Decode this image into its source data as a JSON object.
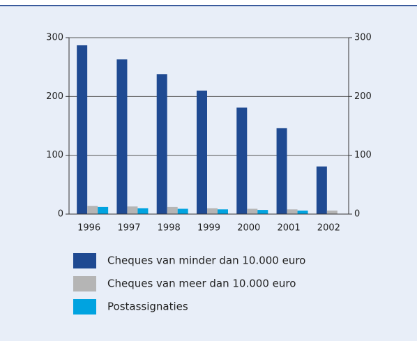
{
  "chart_data": {
    "type": "bar",
    "categories": [
      "1996",
      "1997",
      "1998",
      "1999",
      "2000",
      "2001",
      "2002"
    ],
    "series": [
      {
        "name": "Cheques van minder dan 10.000 euro",
        "color": "#1f4a92",
        "values": [
          287,
          263,
          238,
          210,
          181,
          146,
          81
        ]
      },
      {
        "name": "Cheques van meer dan 10.000 euro",
        "color": "#b5b5b5",
        "values": [
          14,
          13,
          12,
          10,
          9,
          8,
          6
        ]
      },
      {
        "name": "Postassignaties",
        "color": "#00a3e0",
        "values": [
          12,
          10,
          9,
          8,
          7,
          6,
          null
        ]
      }
    ],
    "ylim": [
      0,
      300
    ],
    "yticks": [
      0,
      100,
      200,
      300
    ],
    "y2lim": [
      0,
      300
    ],
    "y2ticks": [
      0,
      100,
      200,
      300
    ],
    "grid": true
  }
}
